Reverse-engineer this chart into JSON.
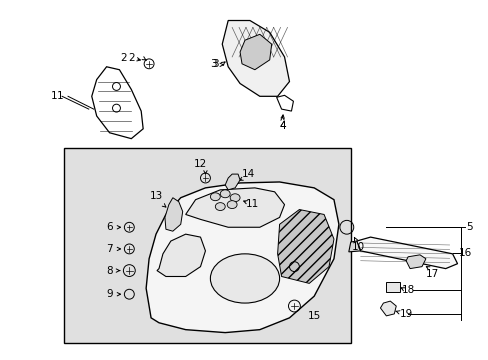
{
  "background_color": "#ffffff",
  "fig_width": 4.89,
  "fig_height": 3.6,
  "dpi": 100,
  "box_color": "#e0e0e0",
  "line_color": "#000000",
  "text_color": "#000000"
}
